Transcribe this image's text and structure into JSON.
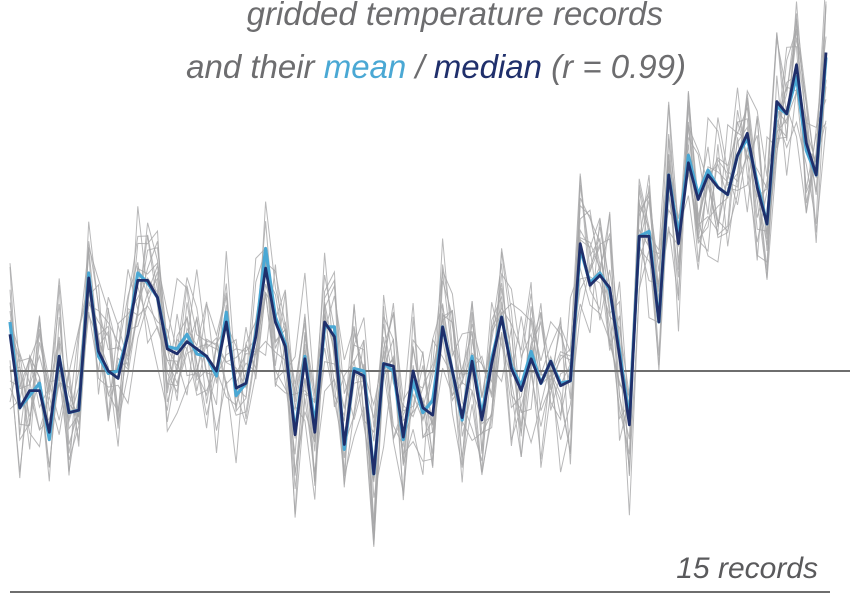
{
  "chart_data": {
    "type": "line",
    "title_line1": "gridded temperature records",
    "title_line2_prefix": "and their ",
    "title_mean_word": "mean",
    "title_separator": " / ",
    "title_median_word": "median",
    "title_suffix": " (r = 0.99)",
    "footer_label": "15 records",
    "baseline": 0,
    "ylim": [
      -1.0,
      1.6
    ],
    "grid": false,
    "colors": {
      "records": "#a6a6a8",
      "mean": "#4aa8d4",
      "median": "#1f2f6b",
      "baseline": "#6e6e6e",
      "title": "#6d6d6f"
    },
    "series": [
      {
        "name": "median",
        "values": [
          0.15,
          -0.15,
          -0.08,
          -0.08,
          -0.25,
          0.06,
          -0.17,
          -0.16,
          0.38,
          0.08,
          0.0,
          -0.03,
          0.15,
          0.37,
          0.37,
          0.3,
          0.09,
          0.07,
          0.12,
          0.09,
          0.06,
          0.0,
          0.2,
          -0.07,
          -0.05,
          0.14,
          0.42,
          0.2,
          0.1,
          -0.26,
          0.05,
          -0.25,
          0.2,
          0.14,
          -0.3,
          0.0,
          -0.02,
          -0.42,
          0.03,
          0.02,
          -0.27,
          0.0,
          -0.15,
          -0.18,
          0.18,
          0.0,
          -0.19,
          0.04,
          -0.2,
          0.03,
          0.22,
          0.01,
          -0.08,
          0.05,
          -0.05,
          0.04,
          -0.06,
          -0.04,
          0.52,
          0.35,
          0.39,
          0.34,
          0.06,
          -0.22,
          0.55,
          0.55,
          0.2,
          0.8,
          0.52,
          0.85,
          0.7,
          0.8,
          0.75,
          0.72,
          0.88,
          0.97,
          0.75,
          0.6,
          1.1,
          1.05,
          1.25,
          0.93,
          0.8,
          1.3
        ]
      },
      {
        "name": "mean",
        "values": [
          0.2,
          -0.15,
          -0.1,
          -0.05,
          -0.28,
          0.06,
          -0.17,
          -0.16,
          0.4,
          0.06,
          -0.01,
          0.0,
          0.15,
          0.4,
          0.36,
          0.3,
          0.1,
          0.09,
          0.15,
          0.07,
          0.06,
          -0.02,
          0.24,
          -0.1,
          -0.05,
          0.15,
          0.5,
          0.22,
          0.11,
          -0.25,
          0.06,
          -0.22,
          0.18,
          0.18,
          -0.32,
          0.01,
          0.0,
          -0.42,
          0.03,
          0.0,
          -0.28,
          -0.04,
          -0.17,
          -0.12,
          0.18,
          0.0,
          -0.2,
          0.06,
          -0.18,
          0.05,
          0.22,
          0.02,
          -0.06,
          0.08,
          -0.05,
          0.04,
          -0.05,
          -0.04,
          0.5,
          0.36,
          0.4,
          0.33,
          0.08,
          -0.2,
          0.55,
          0.57,
          0.2,
          0.8,
          0.55,
          0.88,
          0.72,
          0.82,
          0.75,
          0.72,
          0.88,
          0.95,
          0.77,
          0.6,
          1.08,
          1.05,
          1.2,
          0.9,
          0.8,
          1.28
        ]
      }
    ]
  }
}
